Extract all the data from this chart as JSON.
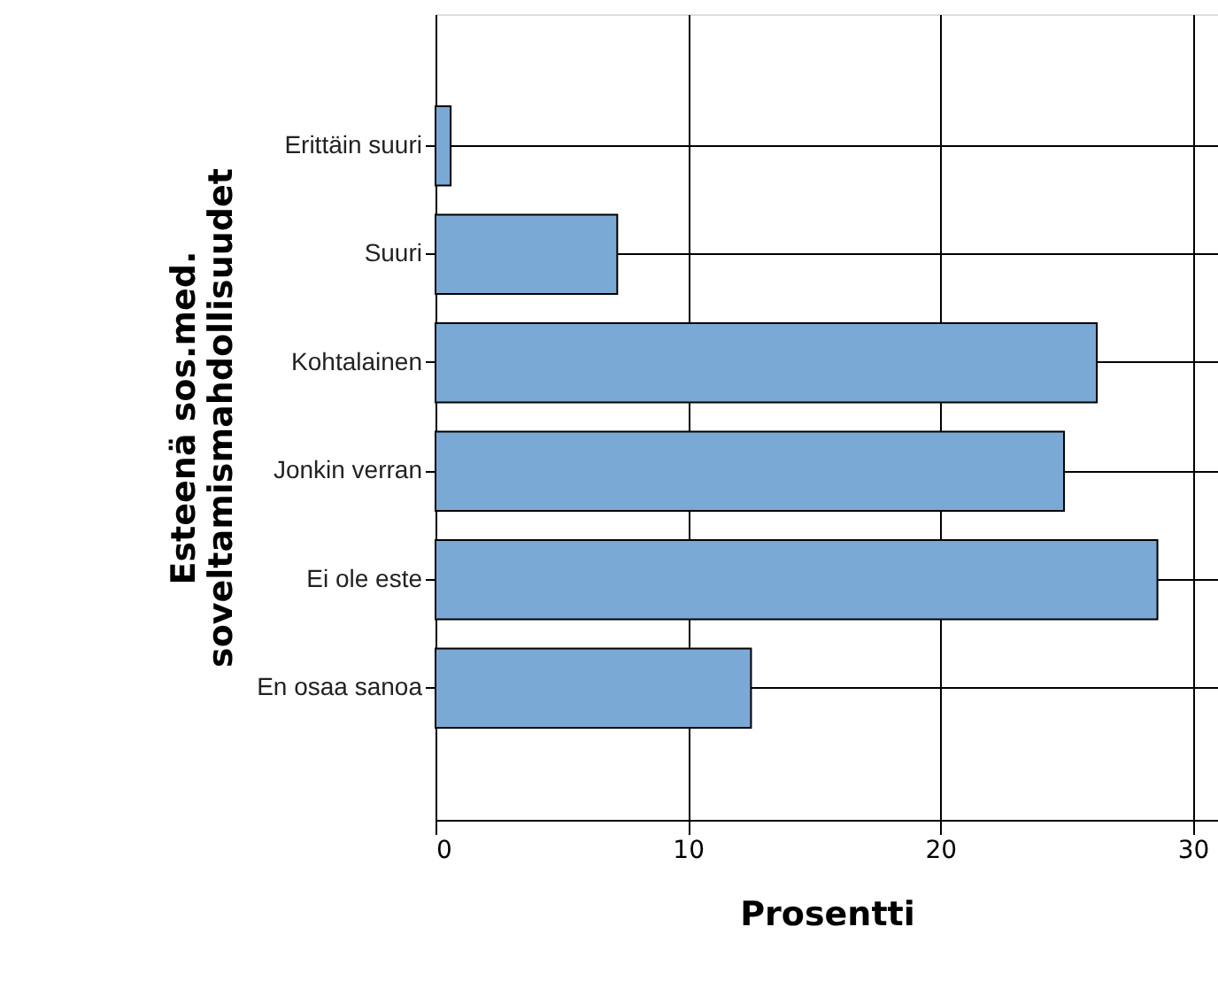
{
  "chart_data": {
    "type": "bar",
    "orientation": "horizontal",
    "xlabel": "Prosentti",
    "ylabel": "Esteenä sos.med.\nsoveltamismahdollisuudet",
    "categories": [
      "Erittäin suuri",
      "Suuri",
      "Kohtalainen",
      "Jonkin verran",
      "Ei ole este",
      "En osaa sanoa"
    ],
    "values": [
      0.6,
      7.2,
      26.2,
      24.9,
      28.6,
      12.5
    ],
    "color": "#7ba9d6",
    "xlim": [
      0,
      31
    ],
    "xticks": [
      0,
      10,
      20,
      30
    ],
    "grid": true
  }
}
